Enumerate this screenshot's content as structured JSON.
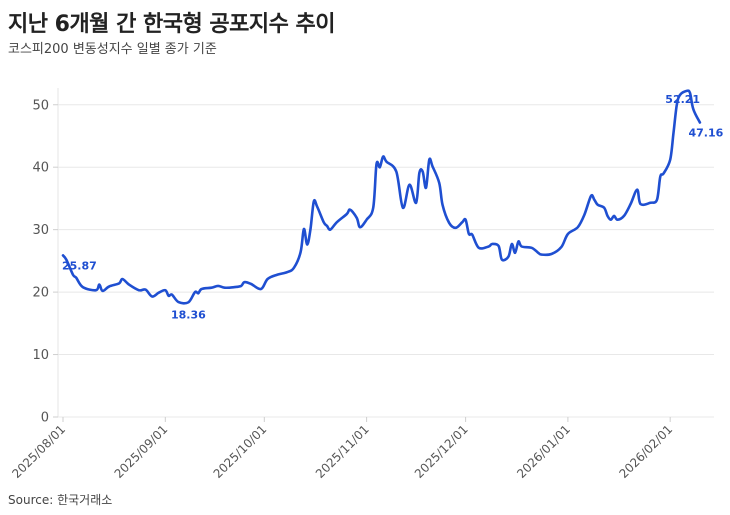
{
  "title": "지난 6개월 간 한국형 공포지수 추이",
  "subtitle": "코스피200 변동성지수 일별 종가 기준",
  "source": "Source: 한국거래소",
  "colors": {
    "line": "#1f4fd1",
    "grid": "#e8e8e8",
    "text": "#555555"
  },
  "chart_data": {
    "type": "line",
    "title": "지난 6개월 간 한국형 공포지수 추이",
    "subtitle": "코스피200 변동성지수 일별 종가 기준",
    "xlabel": "",
    "ylabel": "",
    "ylim": [
      0,
      55
    ],
    "yticks": [
      0,
      10,
      20,
      30,
      40,
      50
    ],
    "xticks": [
      "2025/08/01",
      "2025/09/01",
      "2025/10/01",
      "2025/11/01",
      "2025/12/01",
      "2026/01/01",
      "2026/02/01"
    ],
    "grid": true,
    "legend": null,
    "series": [
      {
        "name": "코스피200 변동성지수",
        "points": [
          [
            "2025/08/01",
            25.87
          ],
          [
            "2025/08/02",
            25.2
          ],
          [
            "2025/08/04",
            22.8
          ],
          [
            "2025/08/05",
            22.3
          ],
          [
            "2025/08/07",
            20.8
          ],
          [
            "2025/08/11",
            20.3
          ],
          [
            "2025/08/12",
            21.2
          ],
          [
            "2025/08/13",
            20.2
          ],
          [
            "2025/08/15",
            20.9
          ],
          [
            "2025/08/18",
            21.4
          ],
          [
            "2025/08/19",
            22.1
          ],
          [
            "2025/08/21",
            21.2
          ],
          [
            "2025/08/24",
            20.3
          ],
          [
            "2025/08/26",
            20.4
          ],
          [
            "2025/08/28",
            19.3
          ],
          [
            "2025/08/30",
            19.9
          ],
          [
            "2025/09/01",
            20.3
          ],
          [
            "2025/09/02",
            19.4
          ],
          [
            "2025/09/03",
            19.6
          ],
          [
            "2025/09/05",
            18.4
          ],
          [
            "2025/09/08",
            18.36
          ],
          [
            "2025/09/10",
            20.0
          ],
          [
            "2025/09/11",
            19.8
          ],
          [
            "2025/09/12",
            20.5
          ],
          [
            "2025/09/15",
            20.7
          ],
          [
            "2025/09/17",
            21.0
          ],
          [
            "2025/09/19",
            20.7
          ],
          [
            "2025/09/22",
            20.8
          ],
          [
            "2025/09/24",
            21.0
          ],
          [
            "2025/09/25",
            21.6
          ],
          [
            "2025/09/27",
            21.3
          ],
          [
            "2025/09/30",
            20.5
          ],
          [
            "2025/10/02",
            22.1
          ],
          [
            "2025/10/05",
            22.8
          ],
          [
            "2025/10/08",
            23.2
          ],
          [
            "2025/10/10",
            23.9
          ],
          [
            "2025/10/12",
            26.4
          ],
          [
            "2025/10/13",
            30.1
          ],
          [
            "2025/10/14",
            27.6
          ],
          [
            "2025/10/15",
            30.1
          ],
          [
            "2025/10/16",
            34.5
          ],
          [
            "2025/10/17",
            33.7
          ],
          [
            "2025/10/19",
            31.2
          ],
          [
            "2025/10/20",
            30.6
          ],
          [
            "2025/10/21",
            30.0
          ],
          [
            "2025/10/23",
            31.2
          ],
          [
            "2025/10/26",
            32.5
          ],
          [
            "2025/10/27",
            33.2
          ],
          [
            "2025/10/29",
            31.9
          ],
          [
            "2025/10/30",
            30.4
          ],
          [
            "2025/11/01",
            31.6
          ],
          [
            "2025/11/03",
            33.5
          ],
          [
            "2025/11/04",
            40.5
          ],
          [
            "2025/11/05",
            40.0
          ],
          [
            "2025/11/06",
            41.7
          ],
          [
            "2025/11/07",
            40.9
          ],
          [
            "2025/11/10",
            39.3
          ],
          [
            "2025/11/12",
            33.5
          ],
          [
            "2025/11/14",
            37.2
          ],
          [
            "2025/11/16",
            34.3
          ],
          [
            "2025/11/17",
            39.1
          ],
          [
            "2025/11/18",
            39.3
          ],
          [
            "2025/11/19",
            36.7
          ],
          [
            "2025/11/20",
            41.2
          ],
          [
            "2025/11/21",
            40.1
          ],
          [
            "2025/11/23",
            37.5
          ],
          [
            "2025/11/24",
            34.0
          ],
          [
            "2025/11/26",
            31.1
          ],
          [
            "2025/11/28",
            30.3
          ],
          [
            "2025/11/30",
            31.2
          ],
          [
            "2025/12/01",
            31.6
          ],
          [
            "2025/12/02",
            29.3
          ],
          [
            "2025/12/03",
            29.2
          ],
          [
            "2025/12/05",
            27.1
          ],
          [
            "2025/12/08",
            27.3
          ],
          [
            "2025/12/09",
            27.7
          ],
          [
            "2025/12/11",
            27.4
          ],
          [
            "2025/12/12",
            25.2
          ],
          [
            "2025/12/14",
            25.7
          ],
          [
            "2025/12/15",
            27.7
          ],
          [
            "2025/12/16",
            26.3
          ],
          [
            "2025/12/17",
            28.1
          ],
          [
            "2025/12/18",
            27.3
          ],
          [
            "2025/12/21",
            27.1
          ],
          [
            "2025/12/23",
            26.3
          ],
          [
            "2025/12/24",
            26.0
          ],
          [
            "2025/12/27",
            26.1
          ],
          [
            "2025/12/30",
            27.2
          ],
          [
            "2026/01/01",
            29.3
          ],
          [
            "2026/01/04",
            30.4
          ],
          [
            "2026/01/06",
            32.4
          ],
          [
            "2026/01/08",
            35.4
          ],
          [
            "2026/01/09",
            34.8
          ],
          [
            "2026/01/10",
            34.0
          ],
          [
            "2026/01/12",
            33.5
          ],
          [
            "2026/01/13",
            32.2
          ],
          [
            "2026/01/14",
            31.6
          ],
          [
            "2026/01/15",
            32.2
          ],
          [
            "2026/01/16",
            31.6
          ],
          [
            "2026/01/18",
            32.2
          ],
          [
            "2026/01/20",
            34.1
          ],
          [
            "2026/01/22",
            36.4
          ],
          [
            "2026/01/23",
            34.1
          ],
          [
            "2026/01/26",
            34.3
          ],
          [
            "2026/01/28",
            34.8
          ],
          [
            "2026/01/29",
            38.5
          ],
          [
            "2026/01/30",
            39.0
          ],
          [
            "2026/02/01",
            41.2
          ],
          [
            "2026/02/02",
            45.5
          ],
          [
            "2026/02/03",
            50.0
          ],
          [
            "2026/02/04",
            51.6
          ],
          [
            "2026/02/06",
            52.21
          ],
          [
            "2026/02/07",
            51.9
          ],
          [
            "2026/02/08",
            49.3
          ],
          [
            "2026/02/10",
            47.16
          ]
        ]
      }
    ],
    "annotations": [
      {
        "label": "25.87",
        "x": "2025/08/01",
        "y": 25.87,
        "note": "start"
      },
      {
        "label": "18.36",
        "x": "2025/09/08",
        "y": 18.36,
        "note": "min"
      },
      {
        "label": "52.21",
        "x": "2026/02/06",
        "y": 52.21,
        "note": "max"
      },
      {
        "label": "47.16",
        "x": "2026/02/10",
        "y": 47.16,
        "note": "last"
      }
    ]
  }
}
